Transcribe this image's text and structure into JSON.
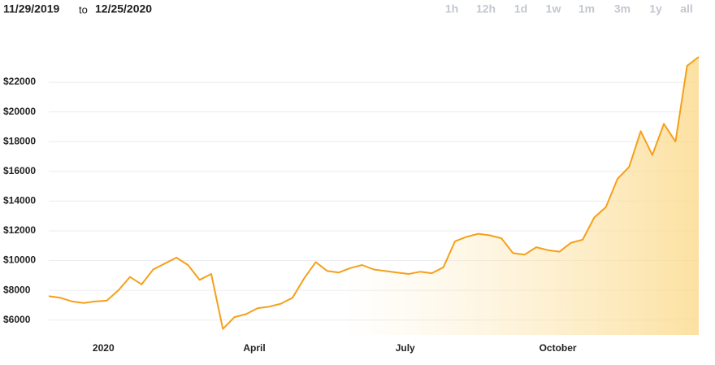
{
  "header": {
    "from": "11/29/2019",
    "to": "to",
    "until": "12/25/2020",
    "ranges": [
      "1h",
      "12h",
      "1d",
      "1w",
      "1m",
      "3m",
      "1y",
      "all"
    ]
  },
  "chart_data": {
    "type": "line",
    "series": [
      {
        "color": "#f5a01a",
        "values": [
          7600,
          7500,
          7250,
          7150,
          7250,
          7300,
          8000,
          8900,
          8400,
          9400,
          9800,
          10200,
          9700,
          8700,
          9100,
          5400,
          6200,
          6400,
          6800,
          6900,
          7100,
          7500,
          8800,
          9900,
          9300,
          9200,
          9500,
          9700,
          9400,
          9300,
          9200,
          9100,
          9250,
          9150,
          9550,
          11300,
          11600,
          11800,
          11700,
          11500,
          10500,
          10400,
          10900,
          10700,
          10600,
          11200,
          11400,
          12900,
          13600,
          15500,
          16300,
          18700,
          17100,
          19200,
          18000,
          23100,
          23700
        ]
      }
    ],
    "xlim": [
      0,
      56
    ],
    "xticks": [
      {
        "value": 4.71,
        "label": "2020"
      },
      {
        "value": 17.71,
        "label": "April"
      },
      {
        "value": 30.71,
        "label": "July"
      },
      {
        "value": 43.86,
        "label": "October"
      }
    ],
    "ylim": [
      5000,
      24300
    ],
    "yticks": [
      {
        "value": 6000,
        "label": "$6000"
      },
      {
        "value": 8000,
        "label": "$8000"
      },
      {
        "value": 10000,
        "label": "$10000"
      },
      {
        "value": 12000,
        "label": "$12000"
      },
      {
        "value": 14000,
        "label": "$14000"
      },
      {
        "value": 16000,
        "label": "$16000"
      },
      {
        "value": 18000,
        "label": "$18000"
      },
      {
        "value": 20000,
        "label": "$20000"
      },
      {
        "value": 22000,
        "label": "$22000"
      }
    ],
    "grid": true,
    "fill": true
  }
}
